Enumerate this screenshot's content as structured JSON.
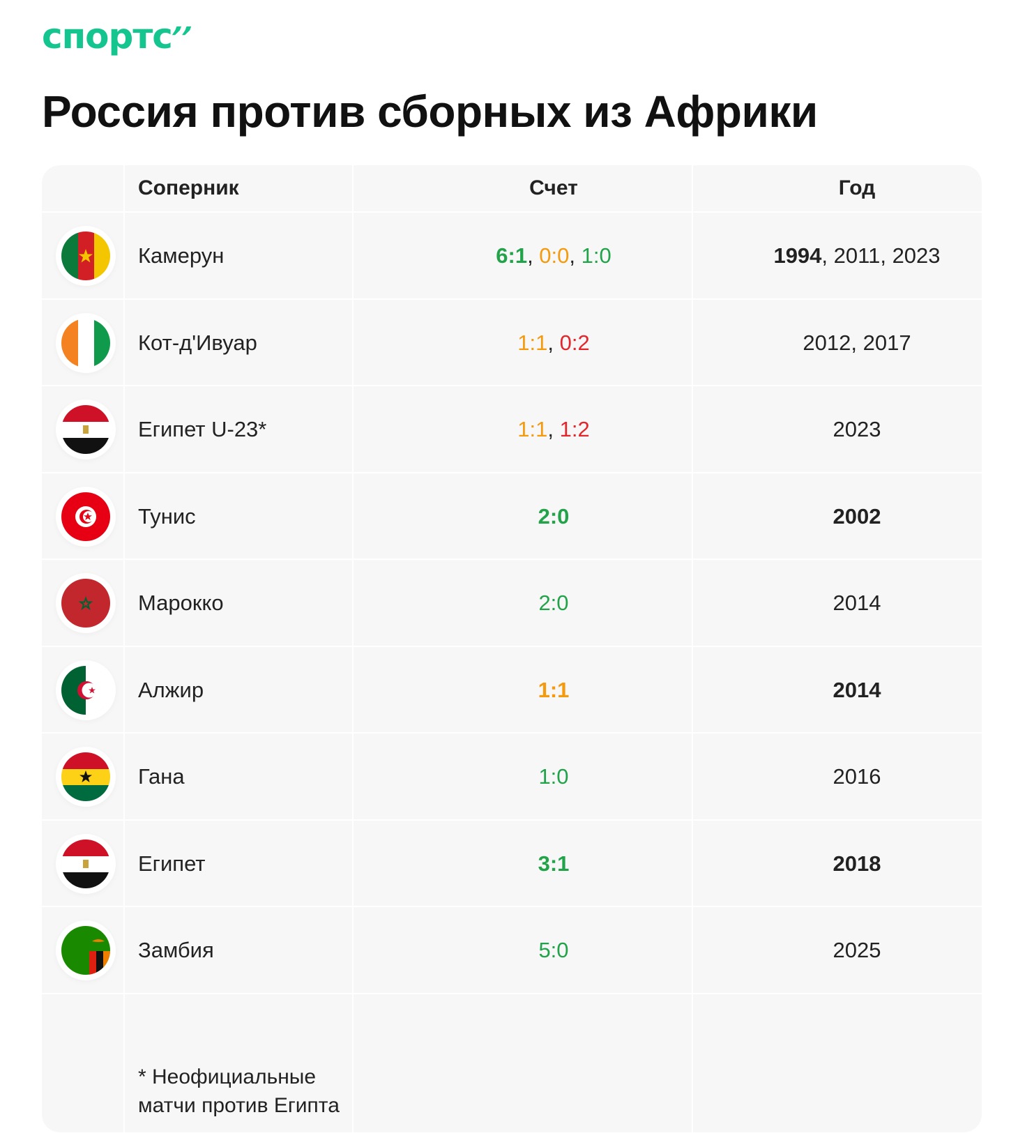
{
  "logo": {
    "text": "спортс",
    "mark": "’’",
    "color": "#14c58f"
  },
  "title": "Россия против сборных из Африки",
  "headers": {
    "opponent": "Соперник",
    "score": "Счет",
    "year": "Год"
  },
  "colors": {
    "win": "#22a34a",
    "draw": "#f59a0c",
    "loss": "#e3262c"
  },
  "rows": [
    {
      "flag": "cameroon-flag-icon",
      "name": "Камерун",
      "scores": [
        {
          "v": "6:1",
          "c": "win",
          "b": true
        },
        {
          "v": "0:0",
          "c": "draw",
          "b": false
        },
        {
          "v": "1:0",
          "c": "win",
          "b": false
        }
      ],
      "years": [
        {
          "v": "1994",
          "b": true
        },
        {
          "v": "2011",
          "b": false
        },
        {
          "v": "2023",
          "b": false
        }
      ]
    },
    {
      "flag": "ivory-coast-flag-icon",
      "name": "Кот-д'Ивуар",
      "scores": [
        {
          "v": "1:1",
          "c": "draw",
          "b": false
        },
        {
          "v": "0:2",
          "c": "loss",
          "b": false
        }
      ],
      "years": [
        {
          "v": "2012",
          "b": false
        },
        {
          "v": "2017",
          "b": false
        }
      ]
    },
    {
      "flag": "egypt-flag-icon",
      "name": "Египет U-23*",
      "scores": [
        {
          "v": "1:1",
          "c": "draw",
          "b": false
        },
        {
          "v": "1:2",
          "c": "loss",
          "b": false
        }
      ],
      "years": [
        {
          "v": "2023",
          "b": false
        }
      ]
    },
    {
      "flag": "tunisia-flag-icon",
      "name": "Тунис",
      "scores": [
        {
          "v": "2:0",
          "c": "win",
          "b": true
        }
      ],
      "years": [
        {
          "v": "2002",
          "b": true
        }
      ]
    },
    {
      "flag": "morocco-flag-icon",
      "name": "Марокко",
      "scores": [
        {
          "v": "2:0",
          "c": "win",
          "b": false
        }
      ],
      "years": [
        {
          "v": "2014",
          "b": false
        }
      ]
    },
    {
      "flag": "algeria-flag-icon",
      "name": "Алжир",
      "scores": [
        {
          "v": "1:1",
          "c": "draw",
          "b": true
        }
      ],
      "years": [
        {
          "v": "2014",
          "b": true
        }
      ]
    },
    {
      "flag": "ghana-flag-icon",
      "name": "Гана",
      "scores": [
        {
          "v": "1:0",
          "c": "win",
          "b": false
        }
      ],
      "years": [
        {
          "v": "2016",
          "b": false
        }
      ]
    },
    {
      "flag": "egypt-flag-icon",
      "name": "Египет",
      "scores": [
        {
          "v": "3:1",
          "c": "win",
          "b": true
        }
      ],
      "years": [
        {
          "v": "2018",
          "b": true
        }
      ]
    },
    {
      "flag": "zambia-flag-icon",
      "name": "Замбия",
      "scores": [
        {
          "v": "5:0",
          "c": "win",
          "b": false
        }
      ],
      "years": [
        {
          "v": "2025",
          "b": false
        }
      ]
    }
  ],
  "footnote": {
    "line1": "* Неофициальные",
    "line2": "матчи против Египта"
  }
}
